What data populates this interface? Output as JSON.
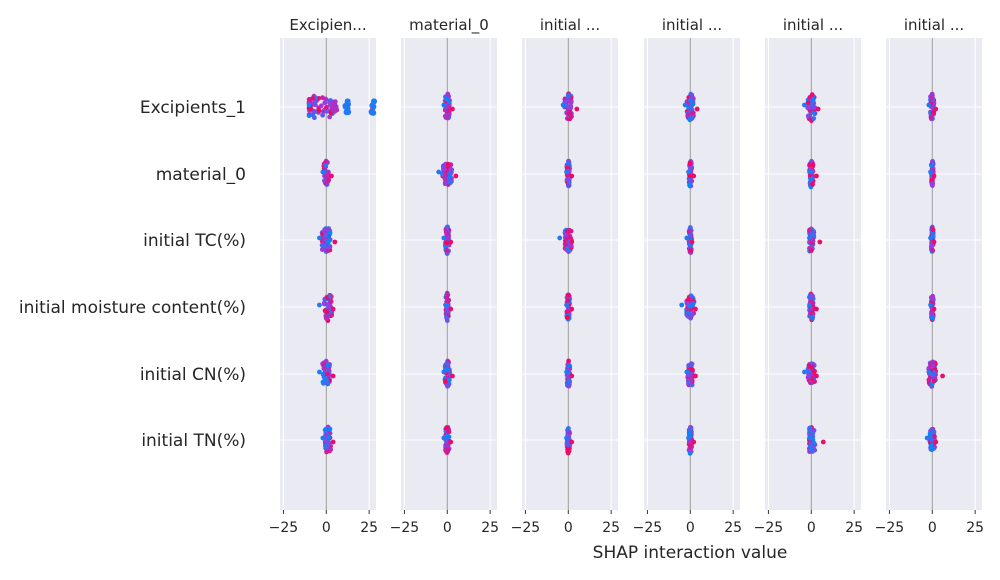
{
  "chart_data": {
    "type": "scatter",
    "subtype": "shap_interaction_summary",
    "xlabel": "SHAP interaction value",
    "features": [
      "Excipients_1",
      "material_0",
      "initial TC(%)",
      "initial moisture content(%)",
      "initial CN(%)",
      "initial TN(%)"
    ],
    "panel_titles": [
      "Excipien...",
      "material_0",
      "initial ...",
      "initial ...",
      "initial ...",
      "initial ..."
    ],
    "x_ticks": [
      -25,
      0,
      25
    ],
    "x_tick_labels": [
      "−25",
      "0",
      "25"
    ],
    "xlim": [
      -27,
      29
    ],
    "grid": true,
    "background": "#eaeaf2",
    "colors": {
      "low": "#008afb",
      "high": "#ff0052",
      "mid": "#9b3be0",
      "zero_line": "#999999"
    },
    "panels": [
      [
        {
          "min": -10,
          "max": 27,
          "center": -4,
          "extra": [
            [
              5,
              0.6
            ],
            [
              12,
              0.1
            ],
            [
              12,
              0.1
            ],
            [
              27,
              0.1
            ]
          ]
        },
        {
          "min": -2,
          "max": 3,
          "center": 0
        },
        {
          "min": -4,
          "max": 5,
          "center": 0
        },
        {
          "min": -4,
          "max": 4,
          "center": 1
        },
        {
          "min": -4,
          "max": 4,
          "center": 0
        },
        {
          "min": -2,
          "max": 4,
          "center": 1
        }
      ],
      [
        {
          "min": -2,
          "max": 3,
          "center": 0
        },
        {
          "min": -5,
          "max": 5,
          "center": 0
        },
        {
          "min": -2,
          "max": 2,
          "center": 0
        },
        {
          "min": -1,
          "max": 2,
          "center": 0
        },
        {
          "min": -2,
          "max": 3,
          "center": 0
        },
        {
          "min": -2,
          "max": 2,
          "center": 0
        }
      ],
      [
        {
          "min": -3,
          "max": 5,
          "center": 0
        },
        {
          "min": -1,
          "max": 2,
          "center": 0
        },
        {
          "min": -5,
          "max": 2,
          "center": 0
        },
        {
          "min": -1,
          "max": 2,
          "center": 0
        },
        {
          "min": -1,
          "max": 2,
          "center": 0
        },
        {
          "min": -1,
          "max": 2,
          "center": 0
        }
      ],
      [
        {
          "min": -3,
          "max": 4,
          "center": 0
        },
        {
          "min": -1,
          "max": 2,
          "center": 0
        },
        {
          "min": -2,
          "max": 1,
          "center": 0
        },
        {
          "min": -5,
          "max": 3,
          "center": 0
        },
        {
          "min": -2,
          "max": 3,
          "center": 0
        },
        {
          "min": -1,
          "max": 2,
          "center": 0
        }
      ],
      [
        {
          "min": -4,
          "max": 4,
          "center": 0
        },
        {
          "min": -1,
          "max": 3,
          "center": 0
        },
        {
          "min": -1,
          "max": 5,
          "center": 0
        },
        {
          "min": -1,
          "max": 3,
          "center": 0
        },
        {
          "min": -4,
          "max": 3,
          "center": 0
        },
        {
          "min": -1,
          "max": 7,
          "center": 0
        }
      ],
      [
        {
          "min": -2,
          "max": 2,
          "center": 0
        },
        {
          "min": -1,
          "max": 1,
          "center": 0
        },
        {
          "min": -1,
          "max": 1,
          "center": 0
        },
        {
          "min": -1,
          "max": 1,
          "center": 0
        },
        {
          "min": -2,
          "max": 6,
          "center": 0
        },
        {
          "min": -3,
          "max": 2,
          "center": 0
        }
      ]
    ]
  }
}
